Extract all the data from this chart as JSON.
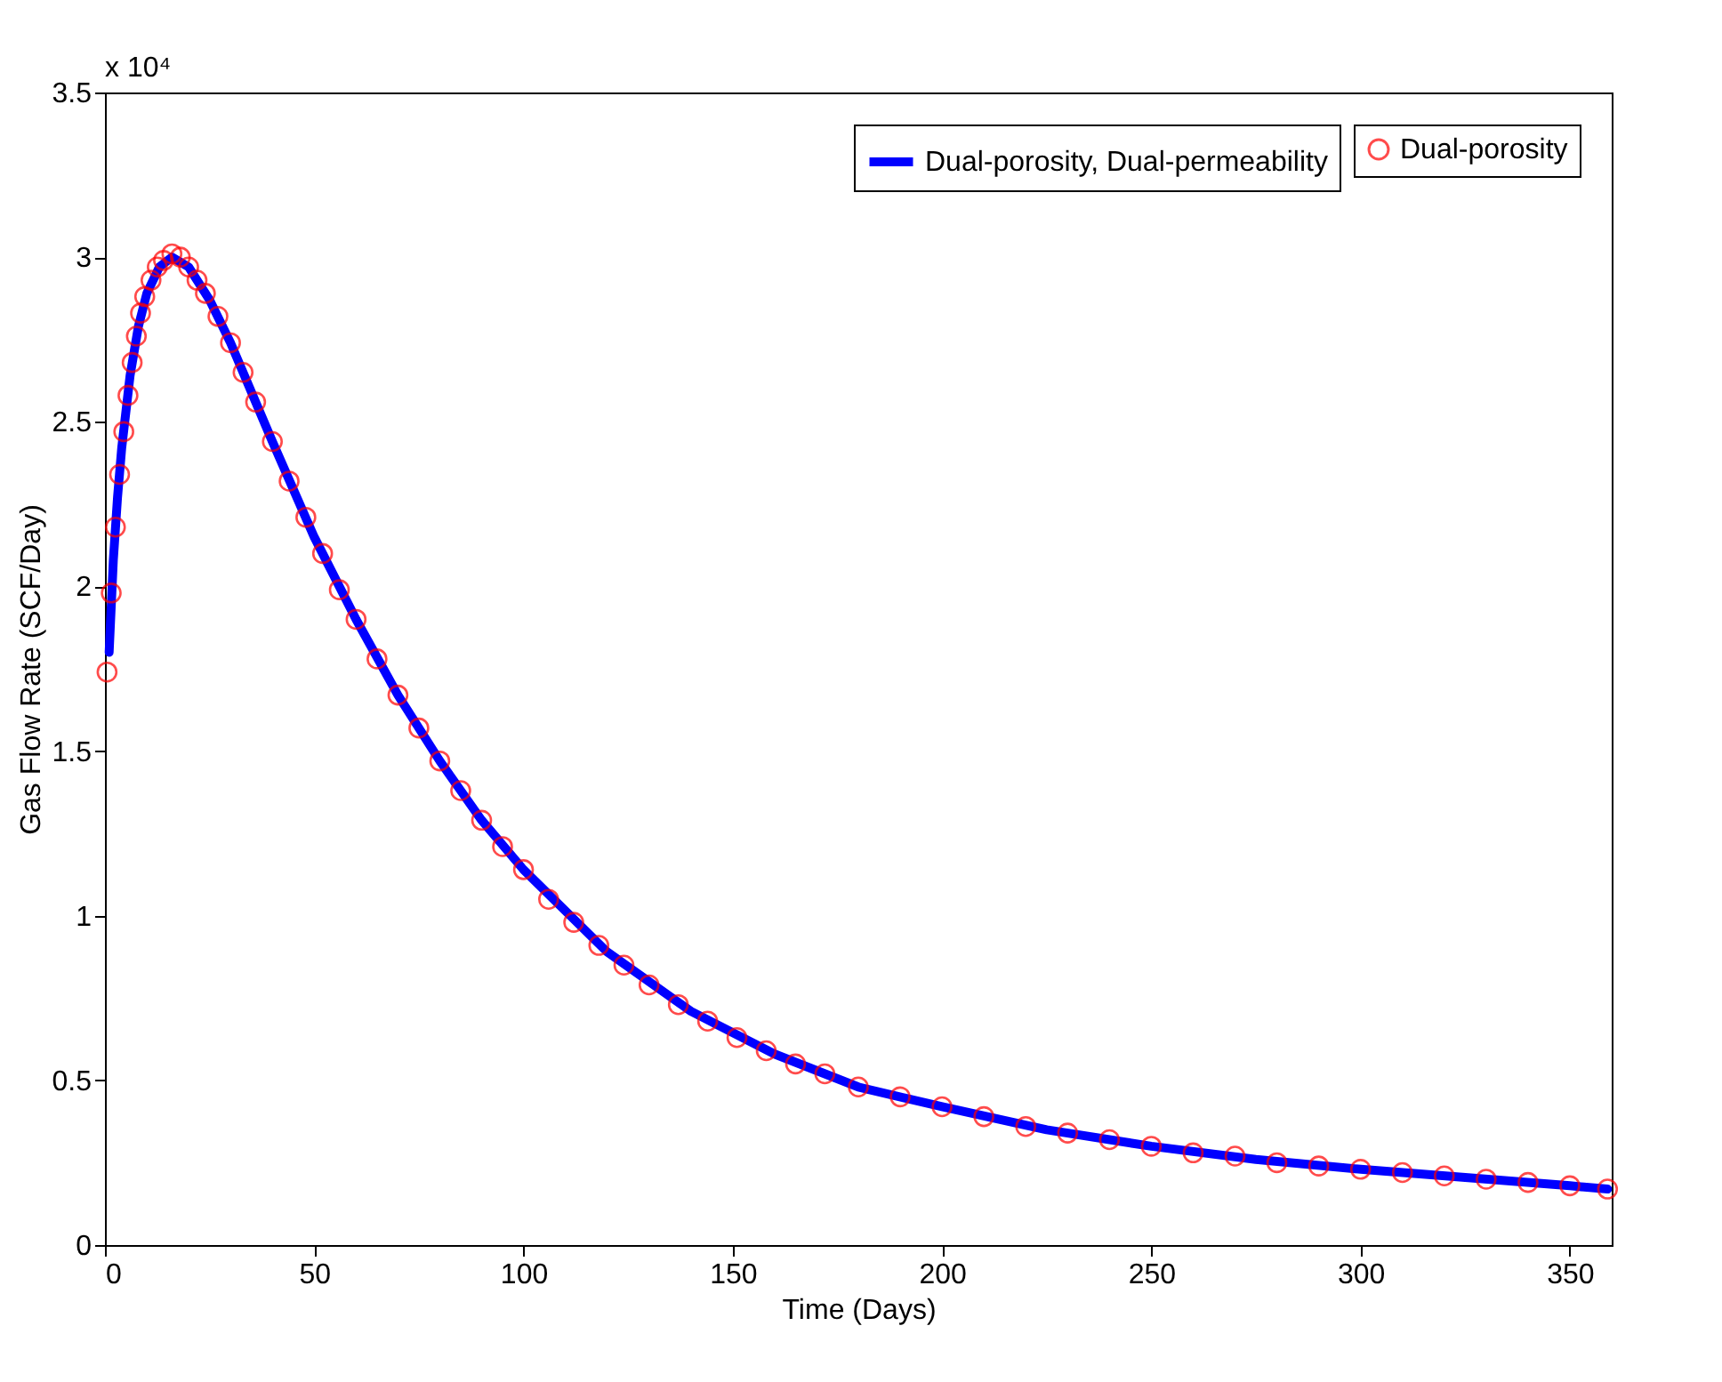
{
  "chart_data": {
    "type": "line",
    "xlabel": "Time (Days)",
    "ylabel": "Gas Flow Rate (SCF/Day)",
    "annotations": [
      "x 10⁴"
    ],
    "xlim": [
      0,
      360
    ],
    "xticks": [
      0,
      50,
      100,
      150,
      200,
      250,
      300,
      350
    ],
    "ylim": [
      0,
      3.5
    ],
    "yticks": [
      0,
      0.5,
      1,
      1.5,
      2,
      2.5,
      3,
      3.5
    ],
    "grid": false,
    "legend": "top right",
    "series": [
      {
        "name": "Dual-porosity, Dual-permeability",
        "color": "#0000ff",
        "marker": "none",
        "line_style": "solid",
        "x": [
          1,
          2,
          3,
          4,
          6,
          8,
          10,
          13,
          16,
          20,
          25,
          30,
          40,
          50,
          60,
          70,
          80,
          90,
          100,
          120,
          140,
          160,
          180,
          200,
          225,
          250,
          275,
          300,
          325,
          350,
          359
        ],
        "values": [
          1.8,
          2.08,
          2.27,
          2.42,
          2.64,
          2.79,
          2.89,
          2.97,
          3.0,
          2.97,
          2.87,
          2.74,
          2.44,
          2.15,
          1.9,
          1.67,
          1.47,
          1.29,
          1.14,
          0.89,
          0.71,
          0.58,
          0.48,
          0.42,
          0.35,
          0.3,
          0.26,
          0.23,
          0.205,
          0.18,
          0.17
        ]
      },
      {
        "name": "Dual-porosity",
        "type": "scatter",
        "color": "#ff0000",
        "marker": "circle",
        "x": [
          0.5,
          1.5,
          2.5,
          3.5,
          4.5,
          5.5,
          6.5,
          7.5,
          8.5,
          9.5,
          11,
          12.5,
          14,
          16,
          18,
          20,
          22,
          24,
          27,
          30,
          33,
          36,
          40,
          44,
          48,
          52,
          56,
          60,
          65,
          70,
          75,
          80,
          85,
          90,
          95,
          100,
          106,
          112,
          118,
          124,
          130,
          137,
          144,
          151,
          158,
          165,
          172,
          180,
          190,
          200,
          210,
          220,
          230,
          240,
          250,
          260,
          270,
          280,
          290,
          300,
          310,
          320,
          330,
          340,
          350,
          359
        ],
        "values": [
          1.74,
          1.98,
          2.18,
          2.34,
          2.47,
          2.58,
          2.68,
          2.76,
          2.83,
          2.88,
          2.93,
          2.97,
          2.99,
          3.01,
          3.0,
          2.97,
          2.93,
          2.89,
          2.82,
          2.74,
          2.65,
          2.56,
          2.44,
          2.32,
          2.21,
          2.1,
          1.99,
          1.9,
          1.78,
          1.67,
          1.57,
          1.47,
          1.38,
          1.29,
          1.21,
          1.14,
          1.05,
          0.98,
          0.91,
          0.85,
          0.79,
          0.73,
          0.68,
          0.63,
          0.59,
          0.55,
          0.52,
          0.48,
          0.45,
          0.42,
          0.39,
          0.36,
          0.34,
          0.32,
          0.3,
          0.28,
          0.27,
          0.25,
          0.24,
          0.23,
          0.22,
          0.21,
          0.2,
          0.19,
          0.18,
          0.17
        ]
      }
    ]
  }
}
